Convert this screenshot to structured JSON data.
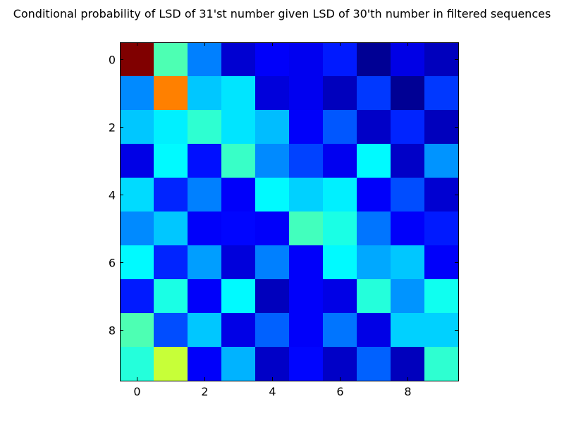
{
  "chart_data": {
    "type": "heatmap",
    "title": "Conditional probability of LSD of 31'st number given LSD of 30'th number in filtered sequences",
    "xlabel": "",
    "ylabel": "",
    "colormap": "jet",
    "x_ticks": [
      "0",
      "2",
      "4",
      "6",
      "8"
    ],
    "y_ticks": [
      "0",
      "2",
      "4",
      "6",
      "8"
    ],
    "x_range": [
      -0.5,
      9.5
    ],
    "y_range": [
      -0.5,
      9.5
    ],
    "grid": false,
    "values": [
      [
        1.0,
        0.45,
        0.25,
        0.08,
        0.12,
        0.11,
        0.15,
        0.02,
        0.1,
        0.06
      ],
      [
        0.26,
        0.75,
        0.32,
        0.35,
        0.09,
        0.11,
        0.06,
        0.18,
        0.02,
        0.18
      ],
      [
        0.32,
        0.36,
        0.42,
        0.35,
        0.31,
        0.12,
        0.21,
        0.07,
        0.16,
        0.06
      ],
      [
        0.1,
        0.37,
        0.14,
        0.43,
        0.26,
        0.19,
        0.11,
        0.37,
        0.07,
        0.27
      ],
      [
        0.34,
        0.16,
        0.25,
        0.12,
        0.37,
        0.33,
        0.36,
        0.12,
        0.2,
        0.08
      ],
      [
        0.26,
        0.32,
        0.12,
        0.13,
        0.12,
        0.44,
        0.4,
        0.24,
        0.12,
        0.15
      ],
      [
        0.37,
        0.16,
        0.28,
        0.09,
        0.25,
        0.12,
        0.37,
        0.29,
        0.32,
        0.12
      ],
      [
        0.15,
        0.4,
        0.12,
        0.37,
        0.06,
        0.12,
        0.1,
        0.41,
        0.27,
        0.39
      ],
      [
        0.45,
        0.2,
        0.32,
        0.1,
        0.22,
        0.12,
        0.24,
        0.1,
        0.33,
        0.33
      ],
      [
        0.41,
        0.57,
        0.12,
        0.3,
        0.07,
        0.13,
        0.07,
        0.22,
        0.06,
        0.42
      ]
    ]
  }
}
